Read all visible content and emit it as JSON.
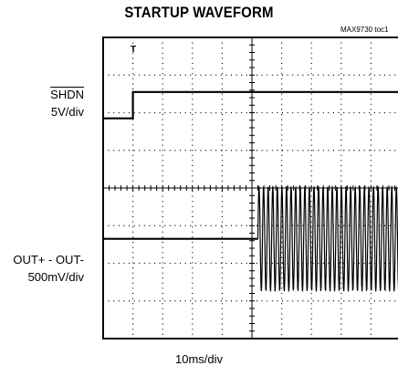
{
  "chart_data": {
    "type": "line",
    "title": "STARTUP WAVEFORM",
    "figure_tag": "MAX9730 toc1",
    "xlabel": "10ms/div",
    "trigger_marker": "T",
    "grid": true,
    "divisions": {
      "x": 10,
      "y": 8
    },
    "series": [
      {
        "name_lines": [
          "SHDN",
          "5V/div"
        ],
        "name_overline": "SHDN",
        "x": [
          0,
          1.0,
          1.0,
          10
        ],
        "y": [
          1.85,
          1.85,
          2.55,
          2.55
        ],
        "units": "div"
      },
      {
        "name_lines": [
          "OUT+ - OUT-",
          "500mV/div"
        ],
        "x": [
          0,
          5.2,
          5.2,
          10
        ],
        "y": [
          -1.35,
          -1.35,
          -1.35,
          -1.35
        ],
        "burst": {
          "start_div": 5.2,
          "end_div": 10,
          "center_div": -1.35,
          "amplitude_div": 1.4,
          "cycles_per_div": 6.5
        },
        "units": "div"
      }
    ]
  }
}
